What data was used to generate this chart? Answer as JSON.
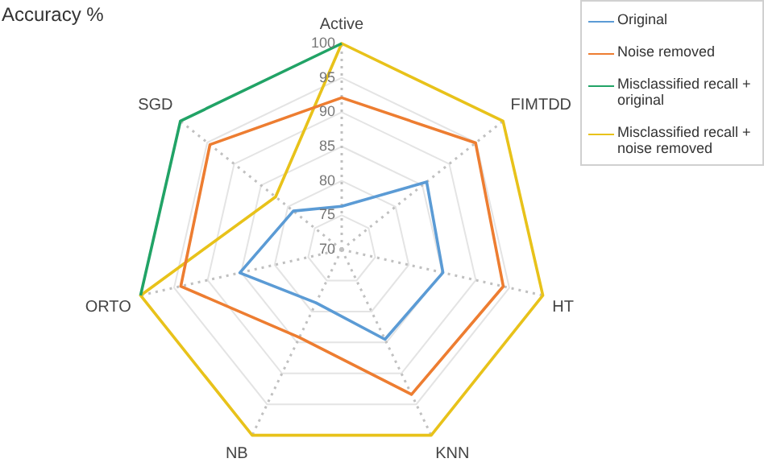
{
  "chart_data": {
    "type": "radar",
    "title": "Accuracy %",
    "categories": [
      "Active",
      "FIMTDD",
      "HT",
      "KNN",
      "NB",
      "ORTO",
      "SGD"
    ],
    "series": [
      {
        "name": "Original",
        "color": "#5b9bd5",
        "values": [
          76.3,
          85.8,
          85.1,
          84.5,
          78.6,
          85.2,
          79.0
        ]
      },
      {
        "name": "Noise removed",
        "color": "#ed7d31",
        "values": [
          92.1,
          94.9,
          94.1,
          93.4,
          84.2,
          94.0,
          94.5
        ]
      },
      {
        "name": "Misclassified recall + original",
        "color": "#21a366",
        "values": [
          100,
          null,
          null,
          null,
          null,
          100,
          100
        ]
      },
      {
        "name": "Misclassified recall + noise removed",
        "color": "#e8c21a",
        "values": [
          100,
          100,
          100,
          100,
          100,
          100,
          82.3
        ]
      }
    ],
    "ylim": [
      70,
      100
    ],
    "yticks": [
      70,
      75,
      80,
      85,
      90,
      95,
      100
    ],
    "grid": true,
    "legend": "top right",
    "marker": "none",
    "line_style": "solid"
  }
}
